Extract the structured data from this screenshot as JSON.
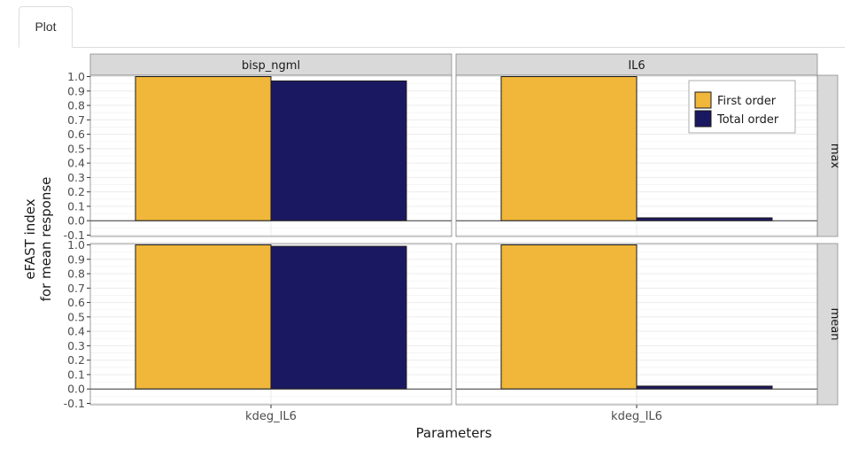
{
  "tabs": [
    {
      "label": "Plot",
      "active": true
    }
  ],
  "colors": {
    "first_order": "#F0B73A",
    "total_order": "#1B1862",
    "strip_bg": "#D9D9D9",
    "grid": "#EBEBEB",
    "zero_line": "#333333"
  },
  "chart_data": {
    "type": "bar",
    "xlabel": "Parameters",
    "ylabel_lines": [
      "eFAST index",
      "for mean response"
    ],
    "ylim": [
      -0.1,
      1.0
    ],
    "yticks": [
      "-0.1",
      "0.0",
      "0.1",
      "0.2",
      "0.3",
      "0.4",
      "0.5",
      "0.6",
      "0.7",
      "0.8",
      "0.9",
      "1.0"
    ],
    "categories": [
      "kdeg_IL6"
    ],
    "facet_columns": [
      "bisp_ngml",
      "IL6"
    ],
    "facet_rows": [
      "max",
      "mean"
    ],
    "legend": {
      "placement": "top-right",
      "entries": [
        {
          "name": "First order",
          "color": "#F0B73A"
        },
        {
          "name": "Total order",
          "color": "#1B1862"
        }
      ]
    },
    "panels": [
      {
        "column": "bisp_ngml",
        "row": "max",
        "first_order": 1.0,
        "total_order": 0.97
      },
      {
        "column": "IL6",
        "row": "max",
        "first_order": 1.0,
        "total_order": 0.02
      },
      {
        "column": "bisp_ngml",
        "row": "mean",
        "first_order": 1.0,
        "total_order": 0.99
      },
      {
        "column": "IL6",
        "row": "mean",
        "first_order": 1.0,
        "total_order": 0.02
      }
    ]
  }
}
